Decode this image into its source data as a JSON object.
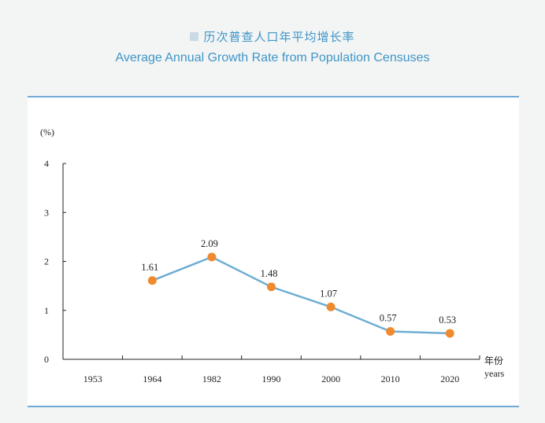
{
  "title_cn": "历次普查人口年平均增长率",
  "title_en": "Average Annual Growth Rate from Population Censuses",
  "colors": {
    "line": "#6faed3",
    "marker": "#ef8a2e",
    "title": "#3f95c6",
    "border": "#6faad6"
  },
  "chart_data": {
    "type": "line",
    "title": "Average Annual Growth Rate from Population Censuses",
    "ylabel": "(%)",
    "xlabel_cn": "年份",
    "xlabel_en": "years",
    "categories": [
      "1953",
      "1964",
      "1982",
      "1990",
      "2000",
      "2010",
      "2020"
    ],
    "ylim": [
      0,
      4
    ],
    "yticks": [
      "0",
      "1",
      "2",
      "3",
      "4"
    ],
    "series": [
      {
        "values": [
          null,
          1.61,
          2.09,
          1.48,
          1.07,
          0.57,
          0.53
        ],
        "labels": [
          "",
          "1.61",
          "2.09",
          "1.48",
          "1.07",
          "0.57",
          "0.53"
        ]
      }
    ],
    "grid": false
  }
}
